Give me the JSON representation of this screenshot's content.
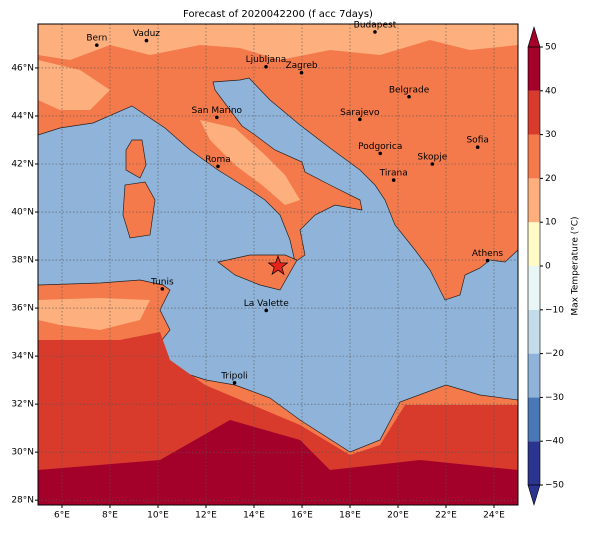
{
  "map": {
    "title": "Forecast of 2020042200 (f acc 7days)",
    "lonlim": [
      5,
      25
    ],
    "latlim": [
      27.8,
      47.83
    ],
    "lonticks": [
      {
        "value": 6,
        "label": "6°E"
      },
      {
        "value": 8,
        "label": "8°E"
      },
      {
        "value": 10,
        "label": "10°E"
      },
      {
        "value": 12,
        "label": "12°E"
      },
      {
        "value": 14,
        "label": "14°E"
      },
      {
        "value": 16,
        "label": "16°E"
      },
      {
        "value": 18,
        "label": "18°E"
      },
      {
        "value": 20,
        "label": "20°E"
      },
      {
        "value": 22,
        "label": "22°E"
      },
      {
        "value": 24,
        "label": "24°E"
      }
    ],
    "latticks": [
      {
        "value": 28,
        "label": "28°N"
      },
      {
        "value": 30,
        "label": "30°N"
      },
      {
        "value": 32,
        "label": "32°N"
      },
      {
        "value": 34,
        "label": "34°N"
      },
      {
        "value": 36,
        "label": "36°N"
      },
      {
        "value": 38,
        "label": "38°N"
      },
      {
        "value": 40,
        "label": "40°N"
      },
      {
        "value": 42,
        "label": "42°N"
      },
      {
        "value": 44,
        "label": "44°N"
      },
      {
        "value": 46,
        "label": "46°N"
      }
    ],
    "grid": true,
    "cities": [
      {
        "name": "Bern",
        "lon": 7.45,
        "lat": 46.95
      },
      {
        "name": "Vaduz",
        "lon": 9.52,
        "lat": 47.14
      },
      {
        "name": "Budapest",
        "lon": 19.04,
        "lat": 47.5
      },
      {
        "name": "Ljubljana",
        "lon": 14.5,
        "lat": 46.05
      },
      {
        "name": "Zagreb",
        "lon": 15.98,
        "lat": 45.8
      },
      {
        "name": "Belgrade",
        "lon": 20.46,
        "lat": 44.8
      },
      {
        "name": "San Marino",
        "lon": 12.45,
        "lat": 43.94
      },
      {
        "name": "Sarajevo",
        "lon": 18.41,
        "lat": 43.86
      },
      {
        "name": "Sofia",
        "lon": 23.32,
        "lat": 42.7
      },
      {
        "name": "Podgorica",
        "lon": 19.26,
        "lat": 42.44
      },
      {
        "name": "Skopje",
        "lon": 21.43,
        "lat": 42.0
      },
      {
        "name": "Roma",
        "lon": 12.5,
        "lat": 41.9
      },
      {
        "name": "Tirana",
        "lon": 19.82,
        "lat": 41.33
      },
      {
        "name": "Athens",
        "lon": 23.73,
        "lat": 37.98
      },
      {
        "name": "Tunis",
        "lon": 10.18,
        "lat": 36.8
      },
      {
        "name": "La Valette",
        "lon": 14.51,
        "lat": 35.9
      },
      {
        "name": "Tripoli",
        "lon": 13.19,
        "lat": 32.89
      }
    ],
    "star": {
      "lon": 15.0,
      "lat": 37.75,
      "color": "#e8231c"
    },
    "colorbar": {
      "label": "Max Temperature (°C)",
      "levels": [
        -50,
        -40,
        -30,
        -20,
        -10,
        0,
        10,
        20,
        30,
        40,
        50
      ],
      "colors": [
        "#2b3590",
        "#4a77b5",
        "#8fb3d9",
        "#c3dcea",
        "#eaf6f6",
        "#fffbc8",
        "#fdb07e",
        "#f47a4c",
        "#d83a2c",
        "#a4012a"
      ],
      "ticks": [
        {
          "value": -50,
          "label": "−50"
        },
        {
          "value": -40,
          "label": "−40"
        },
        {
          "value": -30,
          "label": "−30"
        },
        {
          "value": -20,
          "label": "−20"
        },
        {
          "value": -10,
          "label": "−10"
        },
        0,
        10,
        20,
        30,
        40,
        50
      ]
    }
  }
}
